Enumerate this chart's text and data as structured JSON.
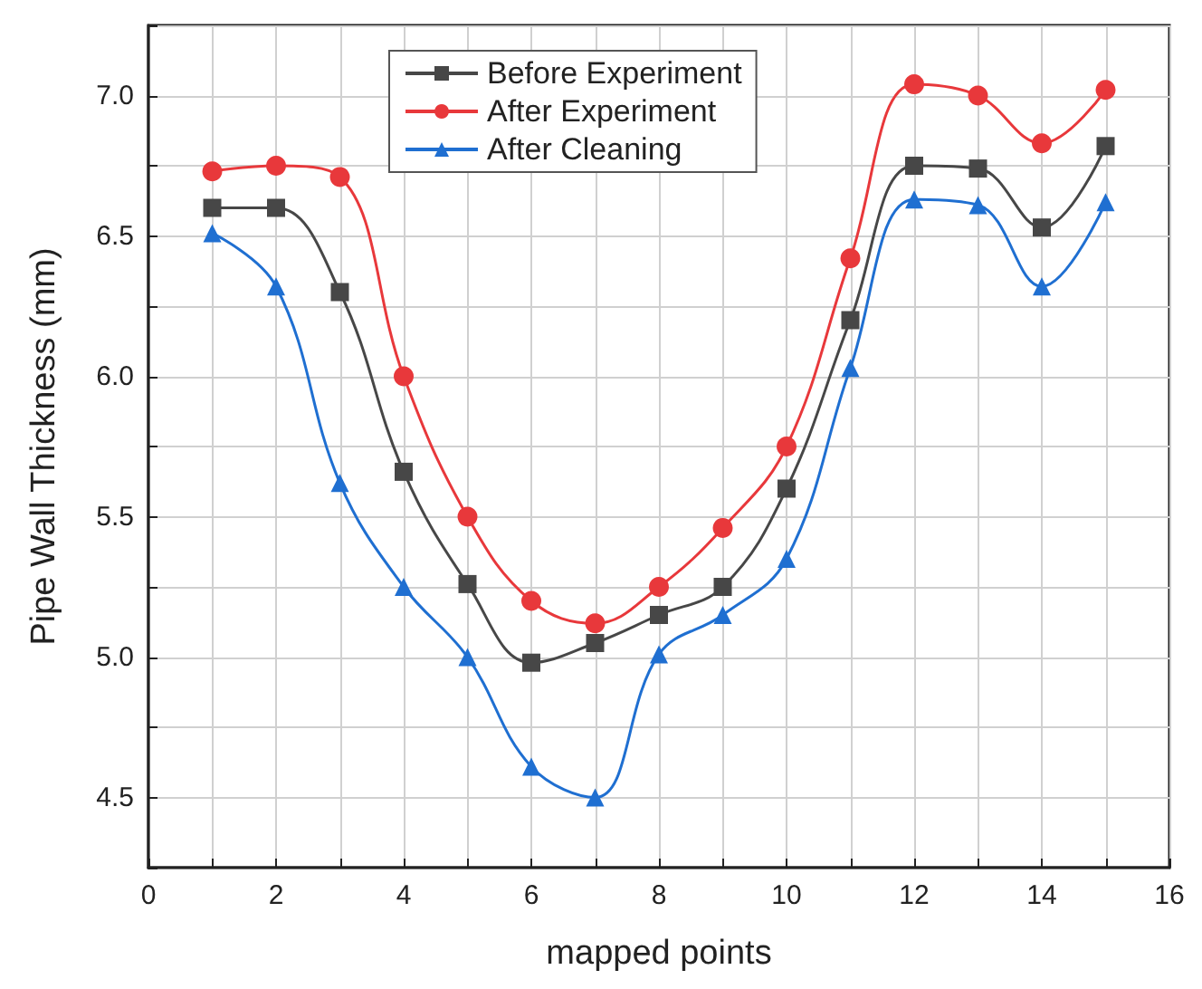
{
  "chart_data": {
    "type": "line",
    "xlabel": "mapped points",
    "ylabel": "Pipe Wall Thickness (mm)",
    "x": [
      1,
      2,
      3,
      4,
      5,
      6,
      7,
      8,
      9,
      10,
      11,
      12,
      13,
      14,
      15
    ],
    "series": [
      {
        "name": "Before Experiment",
        "color": "#474747",
        "marker": "square",
        "values": [
          6.6,
          6.6,
          6.3,
          5.66,
          5.26,
          4.98,
          5.05,
          5.15,
          5.25,
          5.6,
          6.2,
          6.75,
          6.74,
          6.53,
          6.82
        ]
      },
      {
        "name": "After Experiment",
        "color": "#e8383b",
        "marker": "circle",
        "values": [
          6.73,
          6.75,
          6.71,
          6.0,
          5.5,
          5.2,
          5.12,
          5.25,
          5.46,
          5.75,
          6.42,
          7.04,
          7.0,
          6.83,
          7.02
        ]
      },
      {
        "name": "After Cleaning",
        "color": "#1f6fd1",
        "marker": "triangle",
        "values": [
          6.51,
          6.32,
          5.62,
          5.25,
          5.0,
          4.61,
          4.5,
          5.01,
          5.15,
          5.35,
          6.03,
          6.63,
          6.61,
          6.32,
          6.62
        ]
      }
    ],
    "xlim": [
      0,
      16
    ],
    "xticks": [
      0,
      {
        "value": 1,
        "label": null
      },
      2,
      {
        "value": 3,
        "label": null
      },
      4,
      {
        "value": 5,
        "label": null
      },
      6,
      {
        "value": 7,
        "label": null
      },
      8,
      {
        "value": 9,
        "label": null
      },
      10,
      {
        "value": 11,
        "label": null
      },
      12,
      {
        "value": 13,
        "label": null
      },
      14,
      {
        "value": 15,
        "label": null
      },
      16
    ],
    "ylim": [
      4.25,
      7.25
    ],
    "yticks": [
      {
        "value": 4.25,
        "label": null
      },
      {
        "value": 4.5,
        "label": "4.5"
      },
      {
        "value": 4.75,
        "label": null
      },
      {
        "value": 5,
        "label": "5.0"
      },
      {
        "value": 5.25,
        "label": null
      },
      {
        "value": 5.5,
        "label": "5.5"
      },
      {
        "value": 5.75,
        "label": null
      },
      {
        "value": 6,
        "label": "6.0"
      },
      {
        "value": 6.25,
        "label": null
      },
      {
        "value": 6.5,
        "label": "6.5"
      },
      {
        "value": 6.75,
        "label": null
      },
      {
        "value": 7,
        "label": "7.0"
      },
      {
        "value": 7.25,
        "label": null
      }
    ],
    "grid": true,
    "legend": "top",
    "line_style": "solid"
  }
}
